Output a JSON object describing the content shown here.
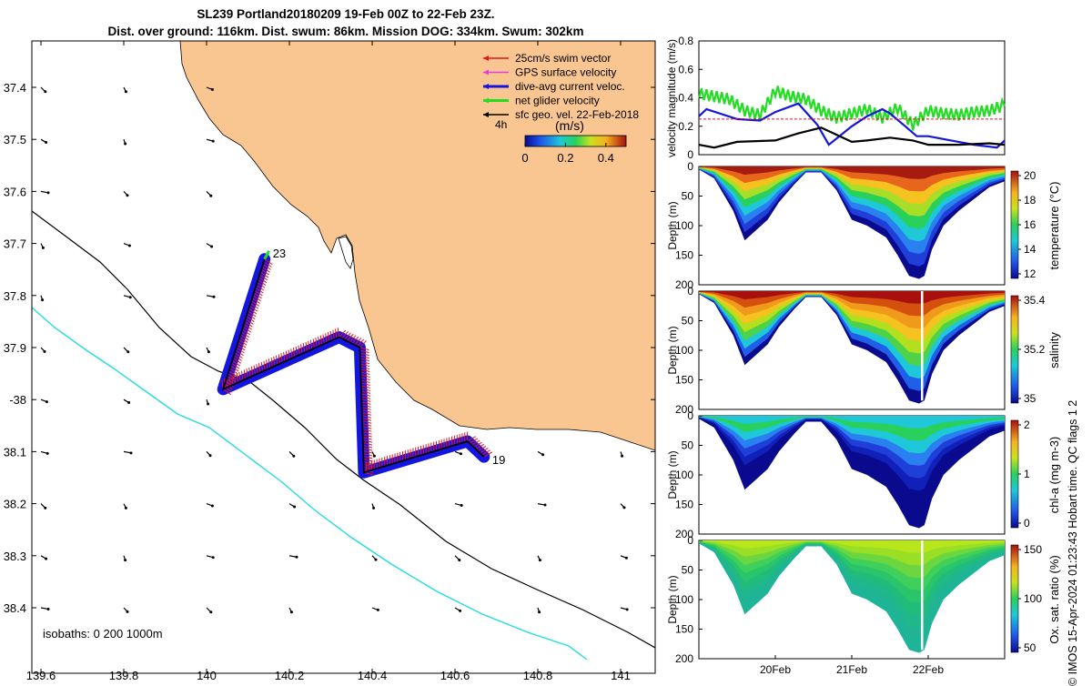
{
  "header": {
    "title_line1": "SL239 Portland20180209 19-Feb 00Z to 22-Feb 23Z.",
    "title_line2": "Dist. over ground: 116km. Dist. swum: 86km. Mission DOG: 334km. Swum: 302km"
  },
  "credit": "© IMOS 15-Apr-2024 01:23:43 Hobart time. QC flags 1  2",
  "colors": {
    "land": "#f9c591",
    "swim": "#e5141e",
    "gps": "#e040e0",
    "current": "#1515e0",
    "net": "#22dd22",
    "geo": "#000000",
    "shelf": "#22dddd"
  },
  "map": {
    "lon_ticks": [
      "139.6",
      "139.8",
      "140",
      "140.2",
      "140.4",
      "140.6",
      "140.8",
      "141"
    ],
    "lat_ticks": [
      "37.4",
      "37.5",
      "37.6",
      "37.7",
      "37.8",
      "37.9",
      "-38",
      "38.1",
      "38.2",
      "38.3",
      "38.4"
    ],
    "legend": [
      "25cm/s swim vector",
      "GPS surface velocity",
      "dive-avg current veloc.",
      "net glider velocity",
      "sfc geo. vel. 22-Feb-2018"
    ],
    "legend_interval": "4h",
    "speed_scale": {
      "label": "(m/s)",
      "ticks": [
        "0",
        "0.2",
        "0.4"
      ],
      "range": [
        0,
        0.5
      ]
    },
    "isobaths_label": "isobaths: 0   200  1000m",
    "waypoints": [
      {
        "label": "23",
        "lon": 140.14,
        "lat": -37.73
      },
      {
        "label": "19",
        "lon": 140.67,
        "lat": -38.11
      }
    ],
    "track": [
      {
        "lon": 140.14,
        "lat": -37.73
      },
      {
        "lon": 140.04,
        "lat": -37.98
      },
      {
        "lon": 140.32,
        "lat": -37.88
      },
      {
        "lon": 140.37,
        "lat": -37.9
      },
      {
        "lon": 140.38,
        "lat": -38.14
      },
      {
        "lon": 140.63,
        "lat": -38.08
      },
      {
        "lon": 140.67,
        "lat": -38.11
      }
    ]
  },
  "chart_data": [
    {
      "type": "line",
      "ylabel": "velocity magnitude (m/s)",
      "ylim": [
        0,
        0.8
      ],
      "yticks": [
        "0",
        "0.2",
        "0.4",
        "0.6",
        "0.8"
      ],
      "xlim_days": [
        19.0,
        23.0
      ],
      "series": [
        {
          "key": "net",
          "x": [
            19.0,
            19.2,
            19.4,
            19.6,
            19.8,
            20.0,
            20.2,
            20.4,
            20.6,
            20.8,
            21.0,
            21.2,
            21.4,
            21.6,
            21.8,
            22.0,
            22.2,
            22.4,
            22.6,
            22.8,
            23.0
          ],
          "y": [
            0.42,
            0.4,
            0.38,
            0.3,
            0.27,
            0.44,
            0.4,
            0.38,
            0.3,
            0.25,
            0.28,
            0.31,
            0.25,
            0.32,
            0.2,
            0.3,
            0.28,
            0.27,
            0.29,
            0.3,
            0.34
          ]
        },
        {
          "key": "current",
          "x": [
            19.0,
            19.1,
            19.5,
            19.8,
            20.0,
            20.3,
            20.55,
            20.7,
            21.0,
            21.2,
            21.4,
            21.5,
            21.7,
            21.85,
            22.0,
            22.3,
            22.6,
            22.9,
            23.0
          ],
          "y": [
            0.27,
            0.32,
            0.25,
            0.24,
            0.3,
            0.36,
            0.21,
            0.07,
            0.2,
            0.27,
            0.32,
            0.29,
            0.2,
            0.13,
            0.13,
            0.1,
            0.07,
            0.05,
            0.1
          ]
        },
        {
          "key": "swim",
          "x": [
            19.0,
            23.0
          ],
          "y": [
            0.25,
            0.25
          ]
        },
        {
          "key": "geo",
          "x": [
            19.0,
            19.2,
            19.5,
            20.0,
            20.3,
            20.6,
            21.0,
            21.2,
            21.5,
            21.8,
            22.0,
            22.4,
            22.8,
            23.0
          ],
          "y": [
            0.07,
            0.05,
            0.09,
            0.1,
            0.15,
            0.19,
            0.09,
            0.1,
            0.12,
            0.1,
            0.07,
            0.07,
            0.08,
            0.07
          ]
        }
      ]
    },
    {
      "type": "heatmap",
      "ylabel": "Depth (m)",
      "ylim": [
        0,
        200
      ],
      "yticks": [
        "0",
        "50",
        "100",
        "150",
        "200"
      ],
      "cbar_label": "temperature (°C)",
      "cbar_ticks": [
        "12",
        "14",
        "16",
        "18",
        "20"
      ]
    },
    {
      "type": "heatmap",
      "ylabel": "Depth (m)",
      "ylim": [
        0,
        200
      ],
      "yticks": [
        "0",
        "50",
        "100",
        "150",
        "200"
      ],
      "cbar_label": "salinity",
      "cbar_ticks": [
        "35",
        "35.2",
        "35.4"
      ]
    },
    {
      "type": "heatmap",
      "ylabel": "Depth (m)",
      "ylim": [
        0,
        200
      ],
      "yticks": [
        "0",
        "50",
        "100",
        "150",
        "200"
      ],
      "cbar_label": "chl-a (mg m-3)",
      "cbar_ticks": [
        "0",
        "1",
        "2"
      ]
    },
    {
      "type": "heatmap",
      "ylabel": "Depth (m)",
      "ylim": [
        0,
        200
      ],
      "yticks": [
        "0",
        "50",
        "100",
        "150",
        "200"
      ],
      "cbar_label": "Ox. sat. ratio (%)",
      "cbar_ticks": [
        "50",
        "100",
        "150"
      ],
      "x_ticks": [
        "20Feb",
        "21Feb",
        "22Feb"
      ],
      "dive_depth_profile": {
        "x_days": [
          19.0,
          19.2,
          19.45,
          19.6,
          19.9,
          20.05,
          20.25,
          20.4,
          20.6,
          20.8,
          21.0,
          21.2,
          21.45,
          21.6,
          21.75,
          21.88,
          21.95,
          22.05,
          22.2,
          22.4,
          22.6,
          22.8,
          23.0
        ],
        "depth_m": [
          5,
          20,
          75,
          125,
          90,
          60,
          30,
          10,
          10,
          40,
          90,
          100,
          120,
          150,
          185,
          190,
          185,
          140,
          100,
          75,
          55,
          35,
          25
        ]
      }
    }
  ]
}
